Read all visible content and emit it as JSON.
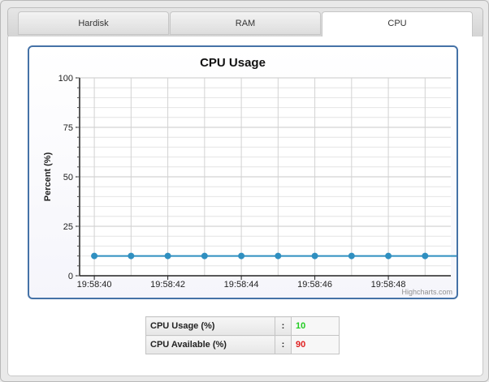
{
  "tabs": [
    {
      "label": "Hardisk",
      "active": false
    },
    {
      "label": "RAM",
      "active": false
    },
    {
      "label": "CPU",
      "active": true
    }
  ],
  "chart_data": {
    "type": "line",
    "title": "CPU Usage",
    "ylabel": "Percent (%)",
    "xlabel": "",
    "ylim": [
      0,
      100
    ],
    "yticks": [
      0,
      25,
      50,
      75,
      100
    ],
    "x_tick_labels": [
      "19:58:40",
      "19:58:42",
      "19:58:44",
      "19:58:46",
      "19:58:48"
    ],
    "x_seconds_range": [
      39.6,
      49.7
    ],
    "x": [
      40,
      41,
      42,
      43,
      44,
      45,
      46,
      47,
      48,
      49,
      50
    ],
    "series": [
      {
        "values": [
          10,
          10,
          10,
          10,
          10,
          10,
          10,
          10,
          10,
          10,
          10
        ],
        "color": "#2f8fc0"
      }
    ],
    "grid": true,
    "credits": "Highcharts.com"
  },
  "stats": {
    "usage_label": "CPU Usage (%)",
    "usage_sep": ":",
    "usage_value": "10",
    "usage_color": "#22cc22",
    "available_label": "CPU Available (%)",
    "available_sep": ":",
    "available_value": "90",
    "available_color": "#e02020"
  }
}
